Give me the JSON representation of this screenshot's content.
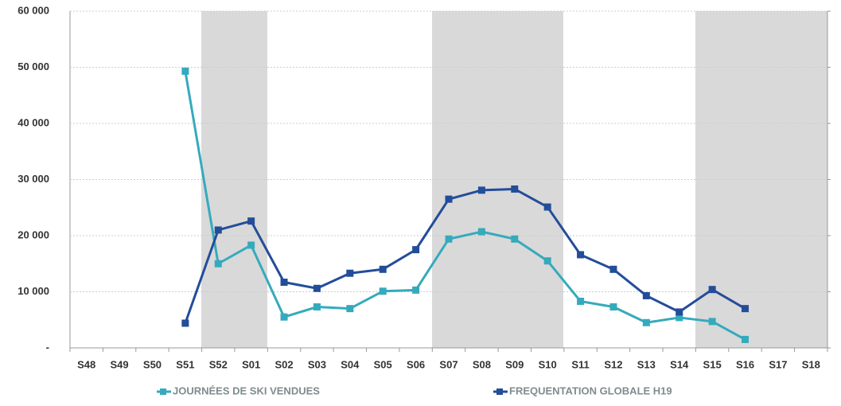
{
  "chart_data": {
    "type": "line",
    "categories": [
      "S48",
      "S49",
      "S50",
      "S51",
      "S52",
      "S01",
      "S02",
      "S03",
      "S04",
      "S05",
      "S06",
      "S07",
      "S08",
      "S09",
      "S10",
      "S11",
      "S12",
      "S13",
      "S14",
      "S15",
      "S16",
      "S17",
      "S18"
    ],
    "series": [
      {
        "name": "JOURNÉES DE SKI VENDUES",
        "color": "#35aabd",
        "values": [
          null,
          null,
          null,
          49300,
          15000,
          18300,
          5500,
          7300,
          7000,
          10100,
          10300,
          19400,
          20700,
          19400,
          15500,
          8300,
          7300,
          4500,
          5400,
          4700,
          1500,
          null,
          null
        ]
      },
      {
        "name": "FREQUENTATION GLOBALE H19",
        "color": "#234d99",
        "values": [
          null,
          null,
          null,
          4400,
          21000,
          22600,
          11700,
          10600,
          13300,
          14000,
          17500,
          26500,
          28100,
          28300,
          25100,
          16600,
          14000,
          9300,
          6400,
          10400,
          7000,
          null,
          null
        ]
      }
    ],
    "ylim": [
      0,
      60000
    ],
    "yticks": [
      {
        "value": 0,
        "label": "-"
      },
      {
        "value": 10000,
        "label": "10 000"
      },
      {
        "value": 20000,
        "label": "20 000"
      },
      {
        "value": 30000,
        "label": "30 000"
      },
      {
        "value": 40000,
        "label": "40 000"
      },
      {
        "value": 50000,
        "label": "50 000"
      },
      {
        "value": 60000,
        "label": "60 000"
      }
    ],
    "grid": true
  }
}
